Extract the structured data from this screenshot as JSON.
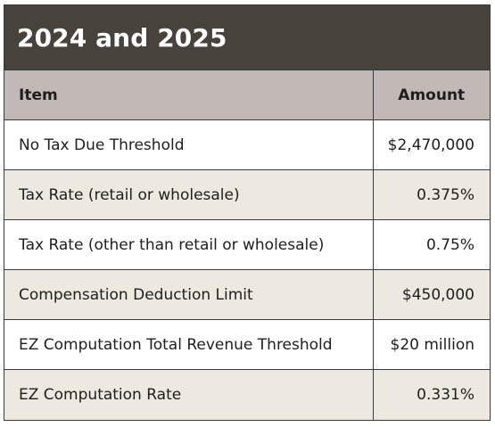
{
  "title": "2024 and 2025",
  "table": {
    "headers": [
      "Item",
      "Amount"
    ],
    "rows": [
      {
        "item": "No Tax Due Threshold",
        "amount": "$2,470,000"
      },
      {
        "item": "Tax Rate (retail or wholesale)",
        "amount": "0.375%"
      },
      {
        "item": "Tax Rate (other than retail or wholesale)",
        "amount": "0.75%"
      },
      {
        "item": "Compensation Deduction Limit",
        "amount": "$450,000"
      },
      {
        "item": "EZ Computation Total Revenue Threshold",
        "amount": "$20 million"
      },
      {
        "item": "EZ Computation Rate",
        "amount": "0.331%"
      }
    ]
  },
  "colors": {
    "title_bg": "#48423d",
    "header_bg": "#c2b8b5",
    "shaded_row_bg": "#ede8e0",
    "border": "#3a3a3a"
  }
}
